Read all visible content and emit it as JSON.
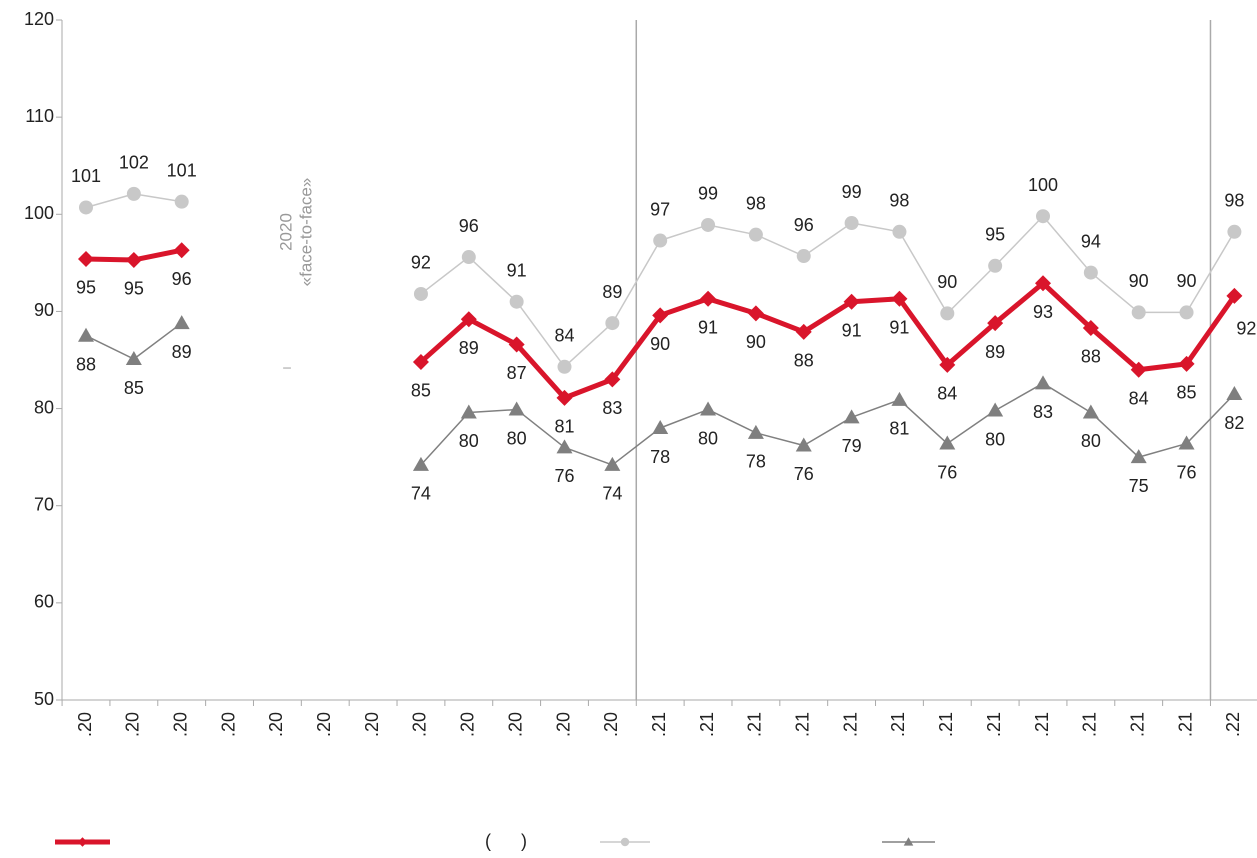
{
  "chart_data": {
    "type": "line",
    "categories": [
      ".20",
      ".20",
      ".20",
      ".20",
      ".20",
      ".20",
      ".20",
      ".20",
      ".20",
      ".20",
      ".20",
      ".20",
      ".21",
      ".21",
      ".21",
      ".21",
      ".21",
      ".21",
      ".21",
      ".21",
      ".21",
      ".21",
      ".21",
      ".21",
      ".22"
    ],
    "series": [
      {
        "name": "(      )",
        "color": "#d9152b",
        "marker": "diamond",
        "values": [
          95.4,
          95.3,
          96.3,
          null,
          null,
          null,
          null,
          84.8,
          89.2,
          86.6,
          81.1,
          83.0,
          89.6,
          91.3,
          89.8,
          87.9,
          91.0,
          91.3,
          84.5,
          88.8,
          92.9,
          88.3,
          84.0,
          84.6,
          91.6
        ],
        "value_labels": [
          "95",
          "95",
          "96",
          null,
          null,
          null,
          null,
          "85",
          "89",
          "87",
          "81",
          "83",
          "90",
          "91",
          "90",
          "88",
          "91",
          "91",
          "84",
          "89",
          "93",
          "88",
          "84",
          "85",
          "92"
        ]
      },
      {
        "color": "#c8c8c8",
        "marker": "circle",
        "values": [
          100.7,
          102.1,
          101.3,
          null,
          null,
          null,
          null,
          91.8,
          95.6,
          91.0,
          84.3,
          88.8,
          97.3,
          98.9,
          97.9,
          95.7,
          99.1,
          98.2,
          89.8,
          94.7,
          99.8,
          94.0,
          89.9,
          89.9,
          98.2
        ],
        "value_labels": [
          "101",
          "102",
          "101",
          null,
          null,
          null,
          null,
          "92",
          "96",
          "91",
          "84",
          "89",
          "97",
          "99",
          "98",
          "96",
          "99",
          "98",
          "90",
          "95",
          "100",
          "94",
          "90",
          "90",
          "98"
        ]
      },
      {
        "color": "#808080",
        "marker": "triangle",
        "values": [
          87.5,
          85.1,
          88.8,
          null,
          null,
          null,
          null,
          74.2,
          79.6,
          79.9,
          76.0,
          74.2,
          78.0,
          79.9,
          77.5,
          76.2,
          79.1,
          80.9,
          76.4,
          79.8,
          82.6,
          79.6,
          75.0,
          76.4,
          81.5
        ],
        "value_labels": [
          "88",
          "85",
          "89",
          null,
          null,
          null,
          null,
          "74",
          "80",
          "80",
          "76",
          "74",
          "78",
          "80",
          "78",
          "76",
          "79",
          "81",
          "76",
          "80",
          "83",
          "80",
          "75",
          "76",
          "82"
        ]
      }
    ],
    "annotations": [
      "2020",
      "«face-to-face»",
      "–"
    ],
    "ylim": [
      50,
      120
    ],
    "yticks": [
      50,
      60,
      70,
      80,
      90,
      100,
      110,
      120
    ]
  }
}
